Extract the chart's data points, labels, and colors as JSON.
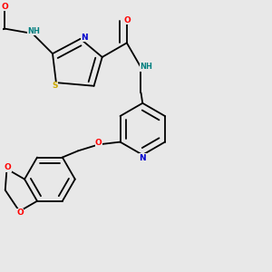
{
  "bg_color": "#e8e8e8",
  "atom_colors": {
    "C": "#000000",
    "N": "#0000cd",
    "O": "#ff0000",
    "S": "#ccaa00",
    "H": "#008080"
  },
  "bond_color": "#000000",
  "bond_lw": 1.3
}
